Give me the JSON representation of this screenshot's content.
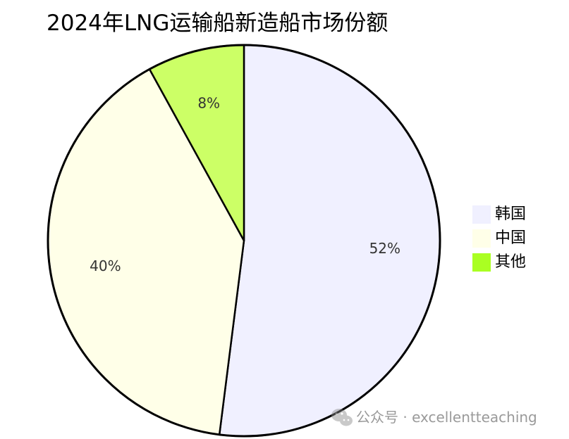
{
  "watermark": {
    "text": "公众号 · excellentteaching"
  },
  "chart_data": {
    "type": "pie",
    "title": "2024年LNG运输船新造船市场份额",
    "categories": [
      "韩国",
      "中国",
      "其他"
    ],
    "values": [
      52,
      40,
      8
    ],
    "labels": [
      "52%",
      "40%",
      "8%"
    ],
    "colors": [
      "#f0f0ff",
      "#ffffe8",
      "#ccff66"
    ],
    "legend_colors": [
      "#f0f0ff",
      "#ffffe8",
      "#aaff22"
    ],
    "start_angle": "12 o'clock",
    "direction": "clockwise",
    "legend_position": "right"
  }
}
